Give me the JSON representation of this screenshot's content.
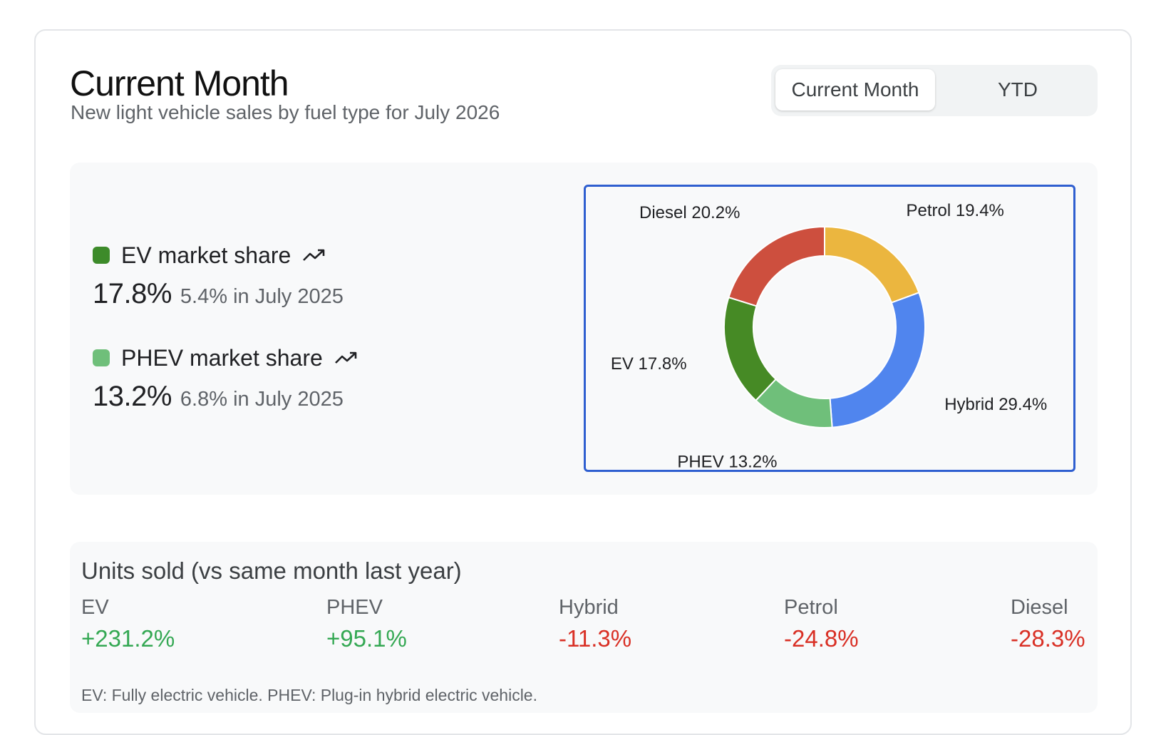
{
  "header": {
    "title": "Current Month",
    "subtitle": "New light vehicle sales by fuel type for July 2026"
  },
  "toggle": {
    "options": [
      "Current Month",
      "YTD"
    ],
    "selected": "Current Month"
  },
  "metrics": [
    {
      "label": "EV market share",
      "value": "17.8%",
      "previous": "5.4% in July 2025",
      "color": "#3d8b2a",
      "trend_icon": "trending-up-icon"
    },
    {
      "label": "PHEV market share",
      "value": "13.2%",
      "previous": "6.8% in July 2025",
      "color": "#6fbf7a",
      "trend_icon": "trending-up-icon"
    }
  ],
  "chart_data": {
    "type": "pie",
    "donut": true,
    "slices": [
      {
        "name": "Petrol",
        "value": 19.4,
        "label": "Petrol 19.4%",
        "color": "#ebb63f"
      },
      {
        "name": "Hybrid",
        "value": 29.4,
        "label": "Hybrid 29.4%",
        "color": "#5085ee"
      },
      {
        "name": "PHEV",
        "value": 13.2,
        "label": "PHEV 13.2%",
        "color": "#6fbf7a"
      },
      {
        "name": "EV",
        "value": 17.8,
        "label": "EV 17.8%",
        "color": "#468a25"
      },
      {
        "name": "Diesel",
        "value": 20.2,
        "label": "Diesel 20.2%",
        "color": "#cd4f3e"
      }
    ]
  },
  "units": {
    "title": "Units sold (vs same month last year)",
    "items": [
      {
        "name": "EV",
        "change": "+231.2%",
        "direction": "up"
      },
      {
        "name": "PHEV",
        "change": "+95.1%",
        "direction": "up"
      },
      {
        "name": "Hybrid",
        "change": "-11.3%",
        "direction": "down"
      },
      {
        "name": "Petrol",
        "change": "-24.8%",
        "direction": "down"
      },
      {
        "name": "Diesel",
        "change": "-28.3%",
        "direction": "down"
      }
    ],
    "footnote": "EV: Fully electric vehicle. PHEV: Plug-in hybrid electric vehicle."
  }
}
